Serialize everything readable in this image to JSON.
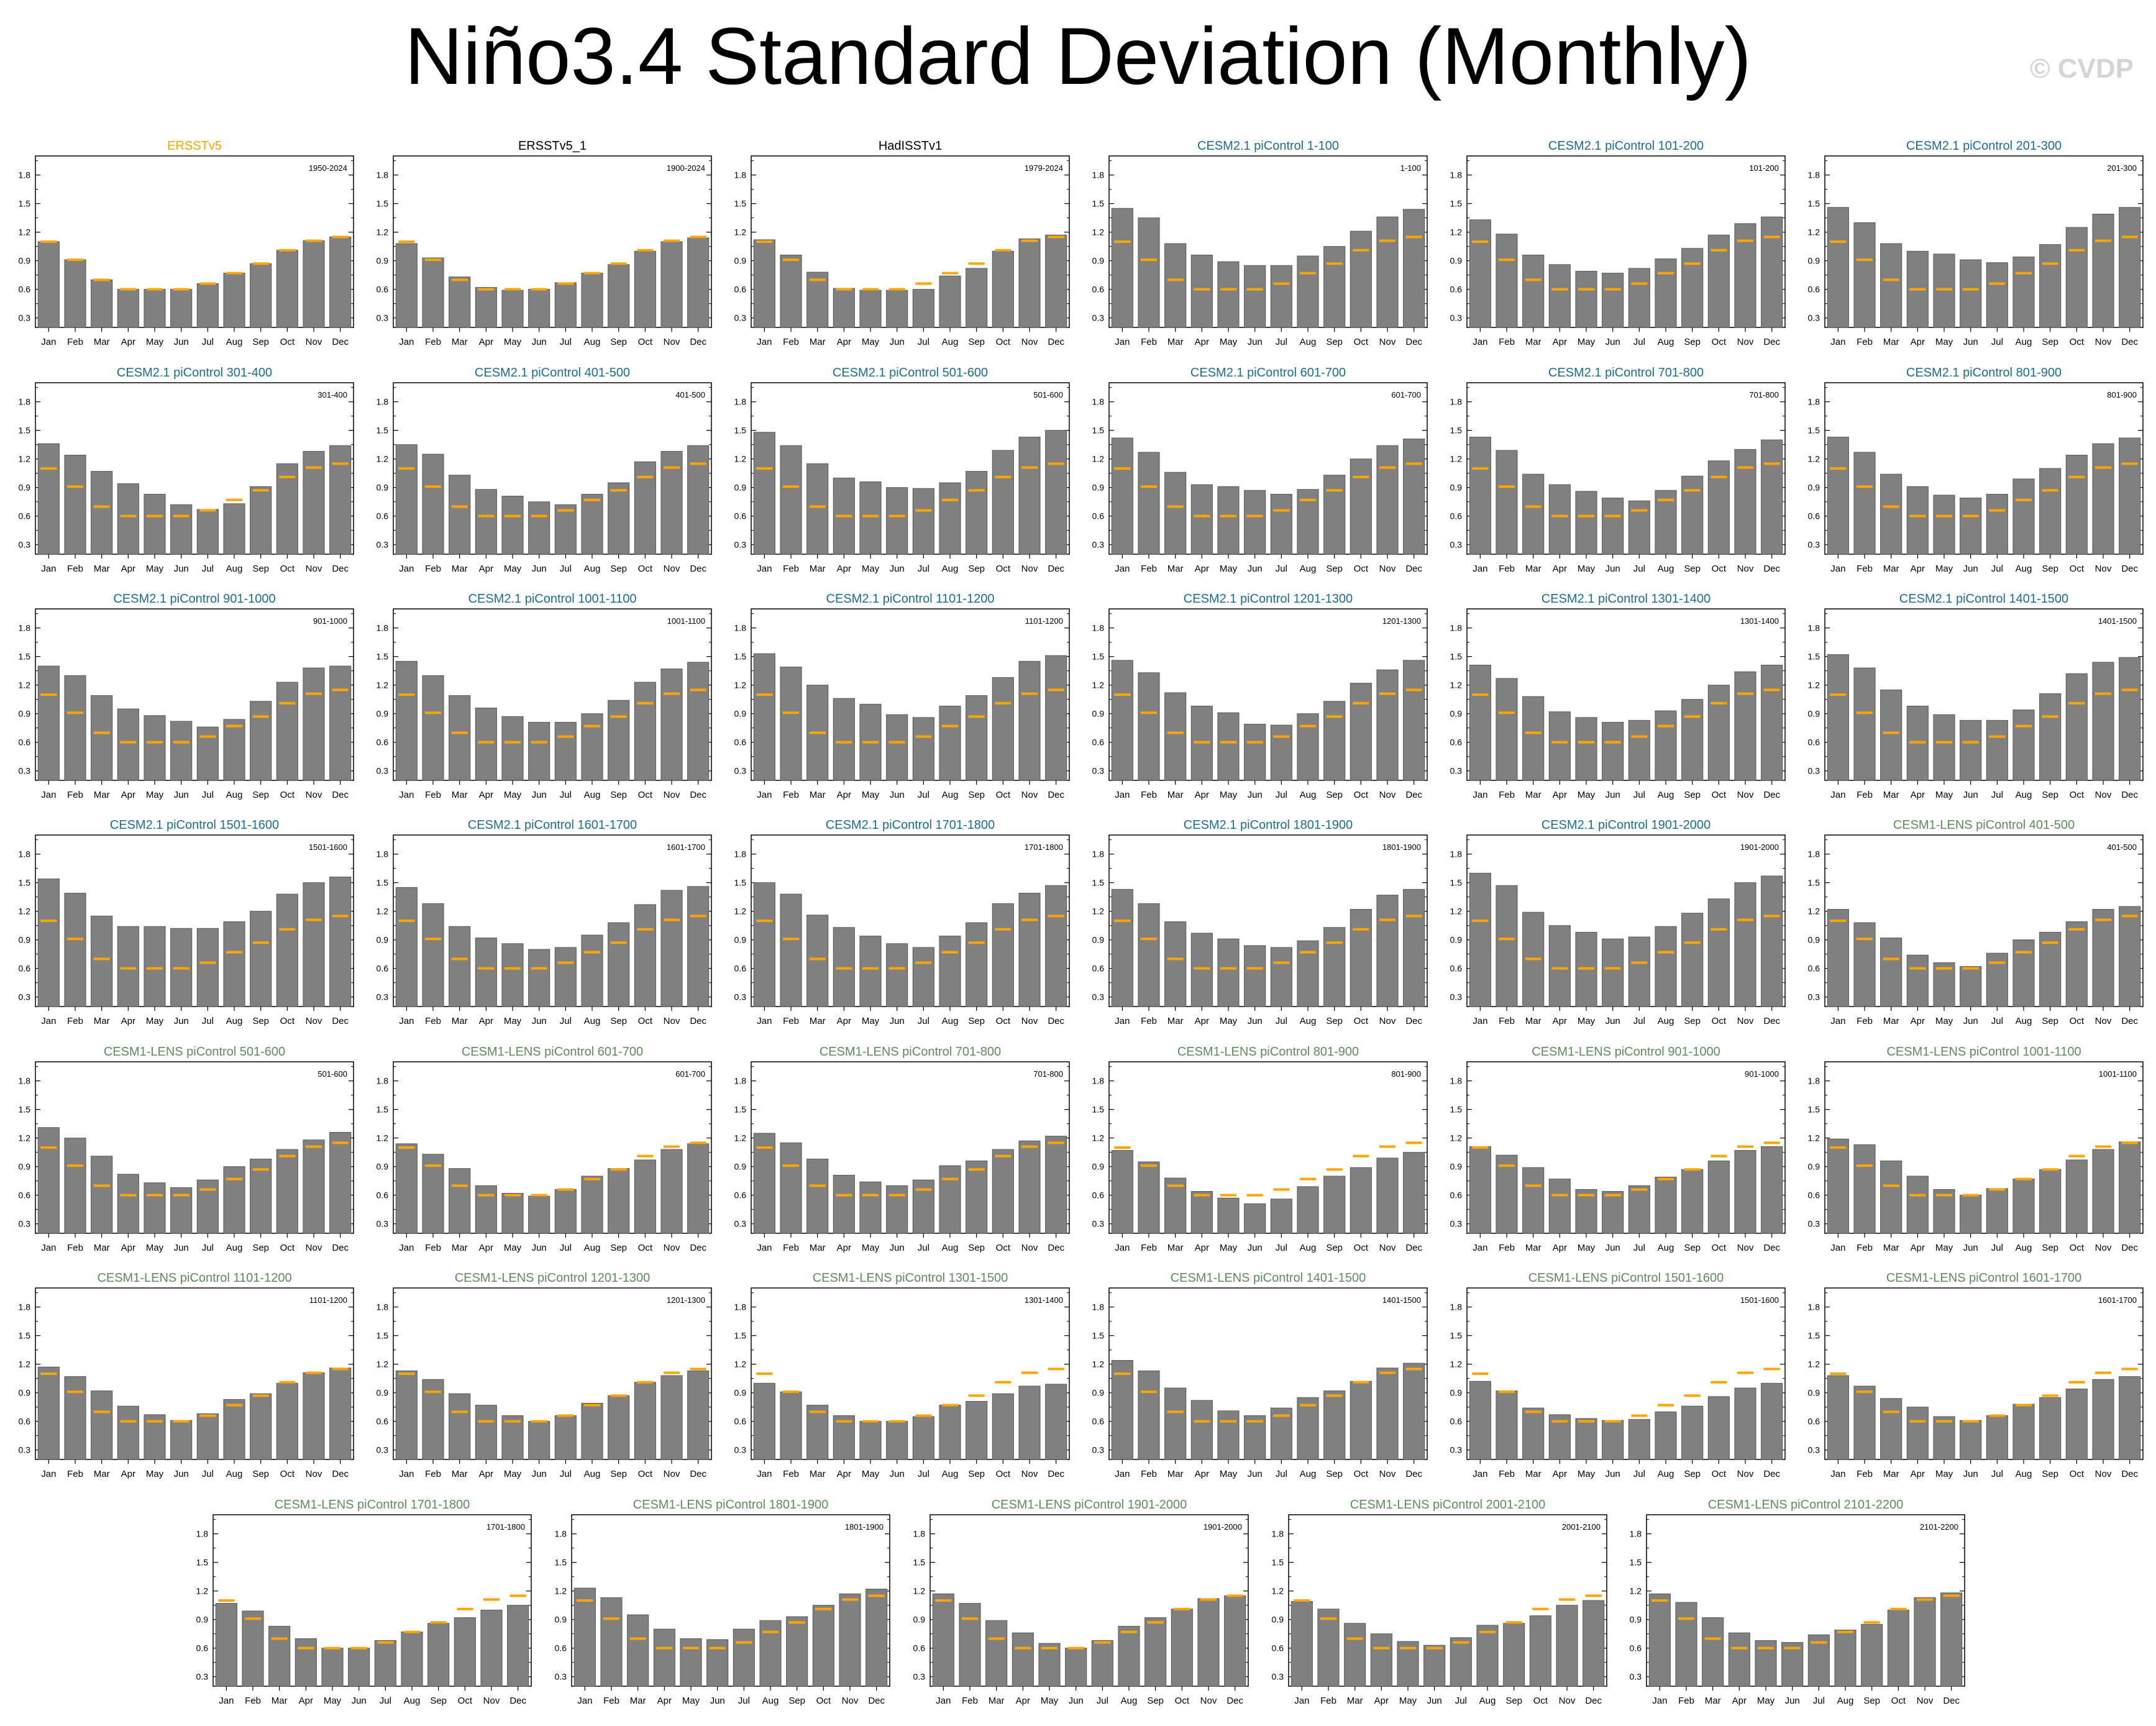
{
  "title": "Niño3.4 Standard Deviation (Monthly)",
  "watermark": "© CVDP",
  "colors": {
    "bar": "#808080",
    "bar_edge": "#595959",
    "reference": "#ffa500",
    "title_obs": "#000000",
    "title_ersst": "#f0a800",
    "title_cesm2": "#1a6e8e",
    "title_cesm1": "#5e8c5a"
  },
  "chart_data": {
    "type": "bar",
    "categories": [
      "Jan",
      "Feb",
      "Mar",
      "Apr",
      "May",
      "Jun",
      "Jul",
      "Aug",
      "Sep",
      "Oct",
      "Nov",
      "Dec"
    ],
    "ylim": [
      0.2,
      2.0
    ],
    "yticks": [
      "0.3",
      "0.6",
      "0.9",
      "1.2",
      "1.5",
      "1.8"
    ],
    "reference_series": {
      "name": "ERSSTv5",
      "values": [
        1.1,
        0.91,
        0.7,
        0.6,
        0.6,
        0.6,
        0.66,
        0.77,
        0.87,
        1.01,
        1.11,
        1.15
      ]
    },
    "panels": [
      {
        "title": "ERSSTv5",
        "years": "1950-2024",
        "group": "ersst",
        "values": [
          1.1,
          0.91,
          0.7,
          0.6,
          0.6,
          0.6,
          0.66,
          0.77,
          0.87,
          1.01,
          1.11,
          1.15
        ]
      },
      {
        "title": "ERSSTv5_1",
        "years": "1900-2024",
        "group": "obs",
        "values": [
          1.08,
          0.93,
          0.73,
          0.62,
          0.59,
          0.6,
          0.67,
          0.77,
          0.86,
          1.0,
          1.1,
          1.14
        ]
      },
      {
        "title": "HadISSTv1",
        "years": "1979-2024",
        "group": "obs",
        "values": [
          1.12,
          0.96,
          0.78,
          0.61,
          0.59,
          0.59,
          0.6,
          0.74,
          0.82,
          1.0,
          1.13,
          1.17
        ]
      },
      {
        "title": "CESM2.1 piControl 1-100",
        "years": "1-100",
        "group": "cesm2",
        "values": [
          1.45,
          1.35,
          1.08,
          0.96,
          0.89,
          0.85,
          0.85,
          0.95,
          1.05,
          1.21,
          1.36,
          1.44
        ]
      },
      {
        "title": "CESM2.1 piControl 101-200",
        "years": "101-200",
        "group": "cesm2",
        "values": [
          1.33,
          1.18,
          0.96,
          0.86,
          0.79,
          0.77,
          0.82,
          0.92,
          1.03,
          1.17,
          1.29,
          1.36
        ]
      },
      {
        "title": "CESM2.1 piControl 201-300",
        "years": "201-300",
        "group": "cesm2",
        "values": [
          1.46,
          1.3,
          1.08,
          1.0,
          0.97,
          0.91,
          0.88,
          0.94,
          1.07,
          1.25,
          1.39,
          1.46
        ]
      },
      {
        "title": "CESM2.1 piControl 301-400",
        "years": "301-400",
        "group": "cesm2",
        "values": [
          1.36,
          1.24,
          1.07,
          0.94,
          0.83,
          0.72,
          0.67,
          0.73,
          0.91,
          1.15,
          1.28,
          1.34
        ]
      },
      {
        "title": "CESM2.1 piControl 401-500",
        "years": "401-500",
        "group": "cesm2",
        "values": [
          1.35,
          1.25,
          1.03,
          0.88,
          0.81,
          0.75,
          0.72,
          0.83,
          0.95,
          1.17,
          1.28,
          1.34
        ]
      },
      {
        "title": "CESM2.1 piControl 501-600",
        "years": "501-600",
        "group": "cesm2",
        "values": [
          1.48,
          1.34,
          1.15,
          1.0,
          0.96,
          0.9,
          0.89,
          0.95,
          1.07,
          1.29,
          1.43,
          1.5
        ]
      },
      {
        "title": "CESM2.1 piControl 601-700",
        "years": "601-700",
        "group": "cesm2",
        "values": [
          1.42,
          1.27,
          1.06,
          0.93,
          0.91,
          0.87,
          0.83,
          0.88,
          1.03,
          1.2,
          1.34,
          1.41
        ]
      },
      {
        "title": "CESM2.1 piControl 701-800",
        "years": "701-800",
        "group": "cesm2",
        "values": [
          1.43,
          1.29,
          1.04,
          0.93,
          0.86,
          0.79,
          0.76,
          0.87,
          1.02,
          1.18,
          1.3,
          1.4
        ]
      },
      {
        "title": "CESM2.1 piControl 801-900",
        "years": "801-900",
        "group": "cesm2",
        "values": [
          1.43,
          1.27,
          1.04,
          0.91,
          0.82,
          0.79,
          0.83,
          0.99,
          1.1,
          1.24,
          1.36,
          1.42
        ]
      },
      {
        "title": "CESM2.1 piControl 901-1000",
        "years": "901-1000",
        "group": "cesm2",
        "values": [
          1.4,
          1.3,
          1.09,
          0.95,
          0.88,
          0.82,
          0.76,
          0.84,
          1.03,
          1.23,
          1.38,
          1.4
        ]
      },
      {
        "title": "CESM2.1 piControl 1001-1100",
        "years": "1001-1100",
        "group": "cesm2",
        "values": [
          1.45,
          1.3,
          1.09,
          0.96,
          0.87,
          0.81,
          0.81,
          0.9,
          1.04,
          1.23,
          1.37,
          1.44
        ]
      },
      {
        "title": "CESM2.1 piControl 1101-1200",
        "years": "1101-1200",
        "group": "cesm2",
        "values": [
          1.53,
          1.39,
          1.2,
          1.06,
          1.0,
          0.89,
          0.86,
          0.98,
          1.09,
          1.28,
          1.45,
          1.51
        ]
      },
      {
        "title": "CESM2.1 piControl 1201-1300",
        "years": "1201-1300",
        "group": "cesm2",
        "values": [
          1.46,
          1.33,
          1.12,
          0.98,
          0.91,
          0.79,
          0.78,
          0.9,
          1.03,
          1.22,
          1.36,
          1.46
        ]
      },
      {
        "title": "CESM2.1 piControl 1301-1400",
        "years": "1301-1400",
        "group": "cesm2",
        "values": [
          1.41,
          1.27,
          1.08,
          0.92,
          0.86,
          0.81,
          0.83,
          0.93,
          1.05,
          1.2,
          1.34,
          1.41
        ]
      },
      {
        "title": "CESM2.1 piControl 1401-1500",
        "years": "1401-1500",
        "group": "cesm2",
        "values": [
          1.52,
          1.38,
          1.15,
          0.98,
          0.89,
          0.83,
          0.83,
          0.94,
          1.11,
          1.32,
          1.44,
          1.49
        ]
      },
      {
        "title": "CESM2.1 piControl 1501-1600",
        "years": "1501-1600",
        "group": "cesm2",
        "values": [
          1.54,
          1.39,
          1.15,
          1.04,
          1.04,
          1.02,
          1.02,
          1.09,
          1.2,
          1.38,
          1.5,
          1.56
        ]
      },
      {
        "title": "CESM2.1 piControl 1601-1700",
        "years": "1601-1700",
        "group": "cesm2",
        "values": [
          1.45,
          1.28,
          1.04,
          0.92,
          0.86,
          0.8,
          0.82,
          0.95,
          1.08,
          1.27,
          1.42,
          1.46
        ]
      },
      {
        "title": "CESM2.1 piControl 1701-1800",
        "years": "1701-1800",
        "group": "cesm2",
        "values": [
          1.5,
          1.38,
          1.16,
          1.03,
          0.94,
          0.86,
          0.82,
          0.94,
          1.08,
          1.28,
          1.39,
          1.47
        ]
      },
      {
        "title": "CESM2.1 piControl 1801-1900",
        "years": "1801-1900",
        "group": "cesm2",
        "values": [
          1.43,
          1.28,
          1.09,
          0.97,
          0.91,
          0.84,
          0.82,
          0.89,
          1.03,
          1.22,
          1.37,
          1.43
        ]
      },
      {
        "title": "CESM2.1 piControl 1901-2000",
        "years": "1901-2000",
        "group": "cesm2",
        "values": [
          1.6,
          1.47,
          1.19,
          1.05,
          0.98,
          0.91,
          0.93,
          1.04,
          1.18,
          1.33,
          1.5,
          1.57
        ]
      },
      {
        "title": "CESM1-LENS piControl 401-500",
        "years": "401-500",
        "group": "cesm1",
        "values": [
          1.22,
          1.08,
          0.92,
          0.74,
          0.66,
          0.62,
          0.76,
          0.9,
          0.98,
          1.09,
          1.22,
          1.25
        ]
      },
      {
        "title": "CESM1-LENS piControl 501-600",
        "years": "501-600",
        "group": "cesm1",
        "values": [
          1.31,
          1.2,
          1.01,
          0.82,
          0.73,
          0.68,
          0.76,
          0.9,
          0.98,
          1.08,
          1.18,
          1.26
        ]
      },
      {
        "title": "CESM1-LENS piControl 601-700",
        "years": "601-700",
        "group": "cesm1",
        "values": [
          1.14,
          1.03,
          0.88,
          0.7,
          0.62,
          0.59,
          0.66,
          0.8,
          0.88,
          0.97,
          1.08,
          1.14
        ]
      },
      {
        "title": "CESM1-LENS piControl 701-800",
        "years": "701-800",
        "group": "cesm1",
        "values": [
          1.25,
          1.15,
          0.98,
          0.81,
          0.74,
          0.7,
          0.76,
          0.91,
          0.96,
          1.08,
          1.17,
          1.22
        ]
      },
      {
        "title": "CESM1-LENS piControl 801-900",
        "years": "801-900",
        "group": "cesm1",
        "values": [
          1.07,
          0.95,
          0.78,
          0.64,
          0.57,
          0.51,
          0.56,
          0.69,
          0.8,
          0.89,
          0.99,
          1.05
        ]
      },
      {
        "title": "CESM1-LENS piControl 901-1000",
        "years": "901-1000",
        "group": "cesm1",
        "values": [
          1.11,
          1.02,
          0.89,
          0.77,
          0.66,
          0.64,
          0.7,
          0.79,
          0.87,
          0.96,
          1.07,
          1.11
        ]
      },
      {
        "title": "CESM1-LENS piControl 1001-1100",
        "years": "1001-1100",
        "group": "cesm1",
        "values": [
          1.19,
          1.13,
          0.96,
          0.8,
          0.66,
          0.6,
          0.67,
          0.77,
          0.87,
          0.97,
          1.08,
          1.16
        ]
      },
      {
        "title": "CESM1-LENS piControl 1101-1200",
        "years": "1101-1200",
        "group": "cesm1",
        "values": [
          1.17,
          1.07,
          0.92,
          0.76,
          0.67,
          0.61,
          0.68,
          0.83,
          0.89,
          1.0,
          1.11,
          1.16
        ]
      },
      {
        "title": "CESM1-LENS piControl 1201-1300",
        "years": "1201-1300",
        "group": "cesm1",
        "values": [
          1.13,
          1.04,
          0.89,
          0.77,
          0.66,
          0.6,
          0.66,
          0.79,
          0.87,
          1.01,
          1.08,
          1.13
        ]
      },
      {
        "title": "CESM1-LENS piControl 1301-1500",
        "years": "1301-1400",
        "group": "cesm1",
        "values": [
          1.0,
          0.91,
          0.77,
          0.66,
          0.6,
          0.6,
          0.65,
          0.77,
          0.81,
          0.89,
          0.97,
          0.99
        ]
      },
      {
        "title": "CESM1-LENS piControl 1401-1500",
        "years": "1401-1500",
        "group": "cesm1",
        "values": [
          1.24,
          1.13,
          0.95,
          0.82,
          0.71,
          0.66,
          0.74,
          0.85,
          0.92,
          1.02,
          1.16,
          1.21
        ]
      },
      {
        "title": "CESM1-LENS piControl 1501-1600",
        "years": "1501-1600",
        "group": "cesm1",
        "values": [
          1.02,
          0.92,
          0.74,
          0.67,
          0.63,
          0.61,
          0.62,
          0.7,
          0.76,
          0.86,
          0.95,
          1.0
        ]
      },
      {
        "title": "CESM1-LENS piControl 1601-1700",
        "years": "1601-1700",
        "group": "cesm1",
        "values": [
          1.08,
          0.97,
          0.84,
          0.75,
          0.65,
          0.61,
          0.66,
          0.78,
          0.85,
          0.94,
          1.04,
          1.07
        ]
      },
      {
        "title": "CESM1-LENS piControl 1701-1800",
        "years": "1701-1800",
        "group": "cesm1",
        "values": [
          1.07,
          0.99,
          0.83,
          0.7,
          0.6,
          0.6,
          0.68,
          0.77,
          0.86,
          0.92,
          1.0,
          1.05
        ]
      },
      {
        "title": "CESM1-LENS piControl 1801-1900",
        "years": "1801-1900",
        "group": "cesm1",
        "values": [
          1.23,
          1.13,
          0.95,
          0.8,
          0.7,
          0.69,
          0.8,
          0.89,
          0.93,
          1.05,
          1.17,
          1.22
        ]
      },
      {
        "title": "CESM1-LENS piControl 1901-2000",
        "years": "1901-2000",
        "group": "cesm1",
        "values": [
          1.17,
          1.07,
          0.89,
          0.76,
          0.65,
          0.6,
          0.68,
          0.83,
          0.92,
          1.01,
          1.12,
          1.15
        ]
      },
      {
        "title": "CESM1-LENS piControl 2001-2100",
        "years": "2001-2100",
        "group": "cesm1",
        "values": [
          1.09,
          1.01,
          0.86,
          0.75,
          0.67,
          0.63,
          0.71,
          0.84,
          0.86,
          0.94,
          1.05,
          1.1
        ]
      },
      {
        "title": "CESM1-LENS piControl 2101-2200",
        "years": "2101-2200",
        "group": "cesm1",
        "values": [
          1.17,
          1.08,
          0.92,
          0.76,
          0.68,
          0.66,
          0.74,
          0.79,
          0.85,
          1.0,
          1.13,
          1.18
        ]
      }
    ]
  }
}
